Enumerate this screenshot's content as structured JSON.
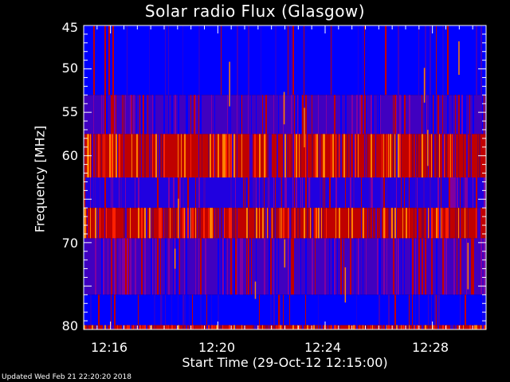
{
  "chart_data": {
    "type": "heatmap",
    "title": "Solar radio Flux (Glasgow)",
    "xlabel": "Start Time (29-Oct-12 12:15:00)",
    "ylabel": "Frequency [MHz]",
    "xlim": [
      "12:15:00",
      "12:30:00"
    ],
    "ylim": [
      45,
      80
    ],
    "y_inverted": true,
    "x_ticks": [
      "12:16",
      "12:20",
      "12:24",
      "12:28"
    ],
    "y_ticks": [
      "45",
      "50",
      "55",
      "60",
      "70",
      "80"
    ],
    "colors": {
      "background": "#000000",
      "low": "#0000ff",
      "mid": "#4000c0",
      "high": "#c00000",
      "peak": "#ff8000"
    },
    "bands": [
      {
        "from_mhz": 45,
        "to_mhz": 53,
        "level": "low"
      },
      {
        "from_mhz": 53,
        "to_mhz": 57.5,
        "level": "mid"
      },
      {
        "from_mhz": 57.5,
        "to_mhz": 62.5,
        "level": "high"
      },
      {
        "from_mhz": 62.5,
        "to_mhz": 66,
        "level": "low-mid"
      },
      {
        "from_mhz": 66,
        "to_mhz": 69.5,
        "level": "high"
      },
      {
        "from_mhz": 69.5,
        "to_mhz": 76,
        "level": "mid"
      },
      {
        "from_mhz": 76,
        "to_mhz": 79.5,
        "level": "low"
      },
      {
        "from_mhz": 79.5,
        "to_mhz": 80,
        "level": "high"
      }
    ]
  },
  "footer": "Updated Wed Feb 21 22:20:20 2018"
}
